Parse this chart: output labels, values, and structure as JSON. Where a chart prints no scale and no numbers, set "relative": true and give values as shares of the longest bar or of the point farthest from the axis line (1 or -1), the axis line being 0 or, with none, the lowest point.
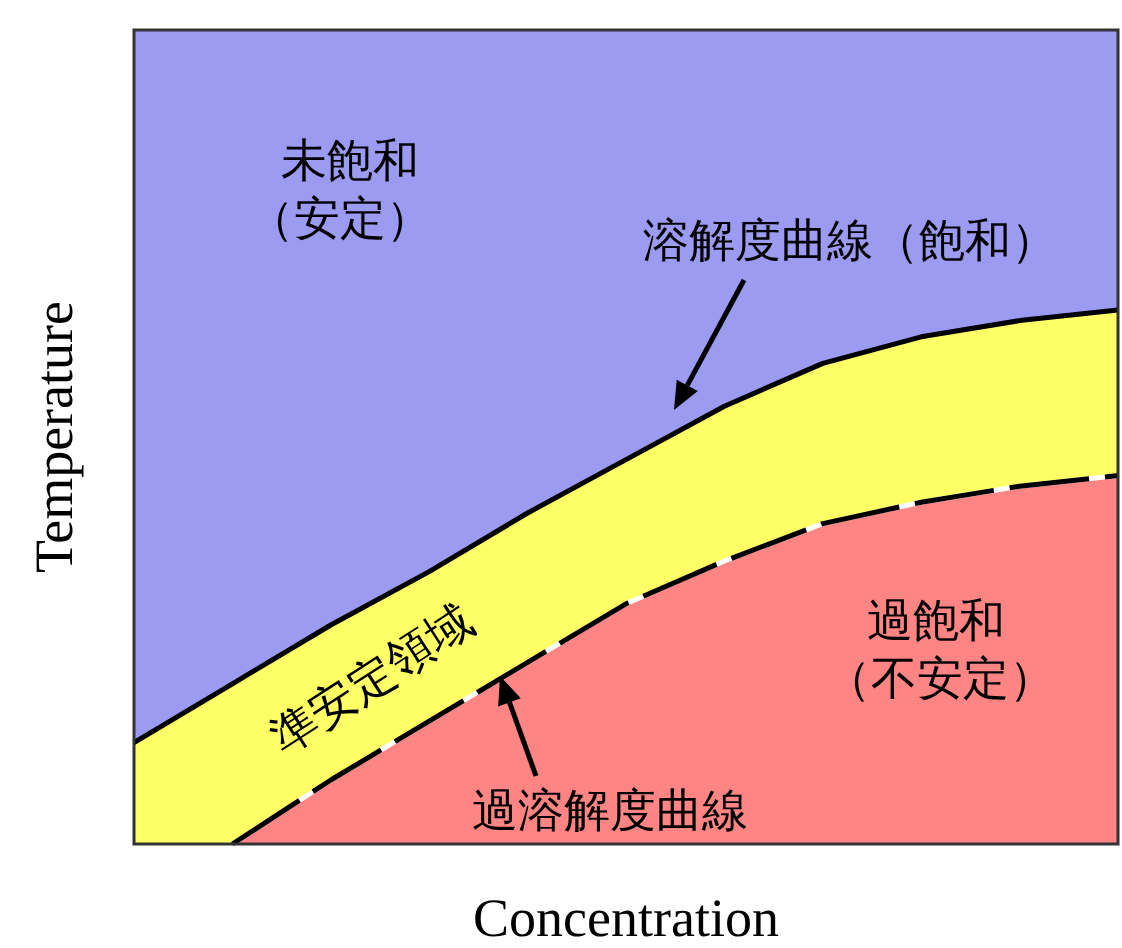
{
  "chart_data": {
    "type": "area",
    "relative": true,
    "xlabel": "Concentration",
    "ylabel": "Temperature",
    "categories": [
      null,
      null,
      null,
      null,
      null,
      null,
      null,
      null,
      null,
      null,
      null
    ],
    "series": [
      {
        "name": "溶解度曲線（飽和）",
        "color": "#ffff66",
        "values": [
          0.19,
          0.3,
          0.41,
          0.51,
          0.62,
          0.72,
          0.82,
          0.9,
          0.95,
          0.98,
          1
        ]
      },
      {
        "name": "過溶解度曲線",
        "color": "#ff8585",
        "line_style": "dashed",
        "values": [
          null,
          0,
          0.12,
          0.23,
          0.34,
          0.45,
          0.53,
          0.6,
          0.64,
          0.67,
          0.69
        ]
      }
    ],
    "annotations": [
      "未飽和",
      "（安定）",
      "準安定領域",
      "過飽和",
      "（不安定）"
    ]
  }
}
